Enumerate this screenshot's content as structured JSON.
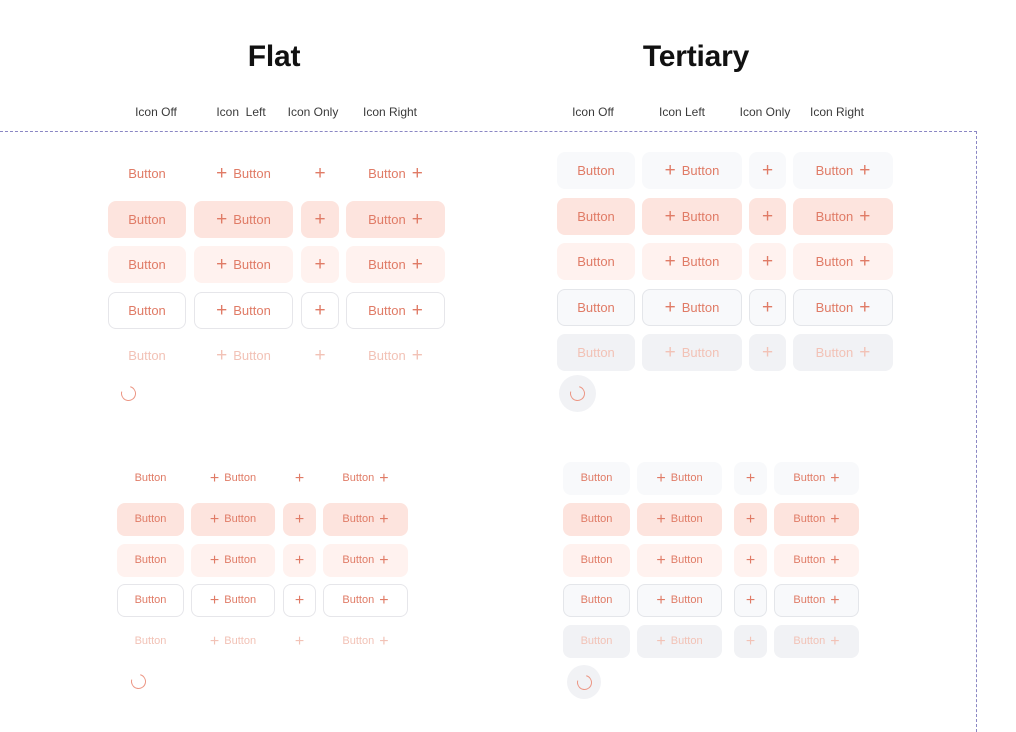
{
  "sections": {
    "flat_title": "Flat",
    "tertiary_title": "Tertiary"
  },
  "columns": {
    "flat": [
      "Icon Off",
      "Icon  Left",
      "Icon Only",
      "Icon Right"
    ],
    "tertiary": [
      "Icon Off",
      "Icon Left",
      "Icon Only",
      "Icon Right"
    ]
  },
  "button_label": "Button",
  "icon": "plus-icon",
  "spinner": "loading-spinner-icon",
  "colors": {
    "text": "#e07b66",
    "text_disabled": "#f2c2b6",
    "filled_bg": "#fde4de",
    "soft_bg": "#fff2ef",
    "tertiary_bg": "#f8f9fb",
    "outline_border": "#e6e6ea",
    "guide_line": "#8b87c4"
  },
  "row_states": [
    "default",
    "pressed",
    "hover",
    "focused",
    "disabled"
  ],
  "size_groups": [
    "large",
    "small"
  ]
}
